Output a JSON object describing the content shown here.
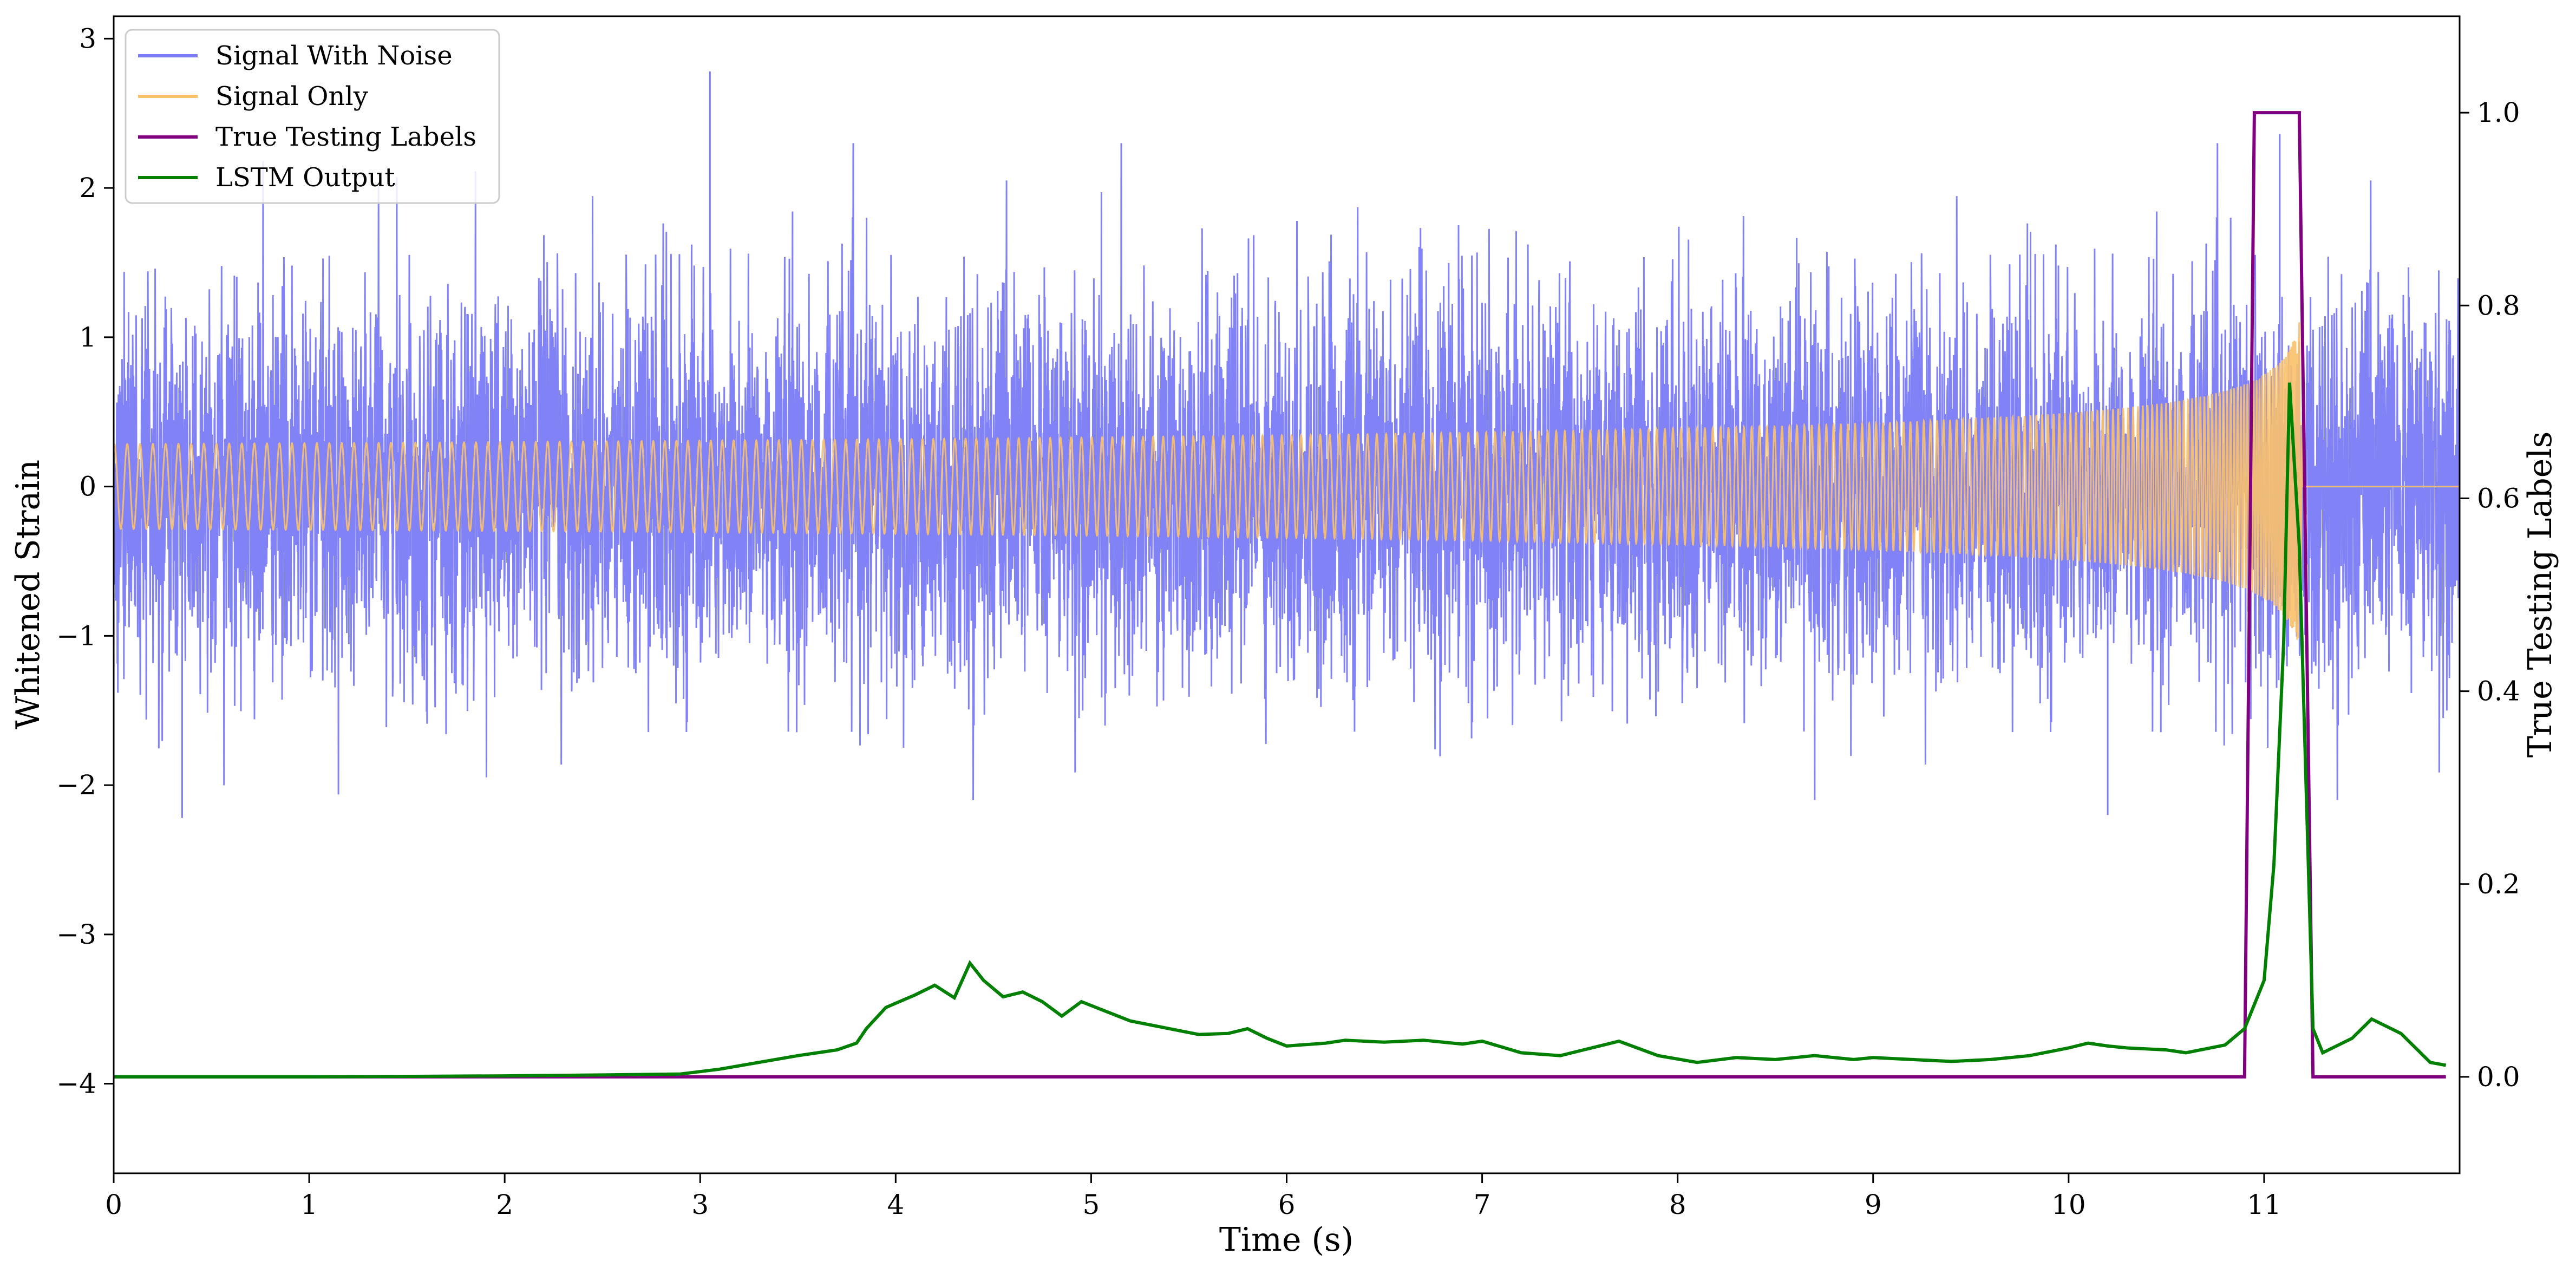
{
  "chart_data": {
    "type": "line",
    "xlabel": "Time (s)",
    "ylabel_left": "Whitened Strain",
    "ylabel_right": "True Testing Labels",
    "xlim": [
      0,
      12
    ],
    "ylim_left": [
      -4.6,
      3.15
    ],
    "ylim_right": [
      -0.1,
      1.1
    ],
    "x_ticks": [
      0,
      1,
      2,
      3,
      4,
      5,
      6,
      7,
      8,
      9,
      10,
      11
    ],
    "x_tick_labels": [
      "0",
      "1",
      "2",
      "3",
      "4",
      "5",
      "6",
      "7",
      "8",
      "9",
      "10",
      "11"
    ],
    "y_left_ticks": [
      -4,
      -3,
      -2,
      -1,
      0,
      1,
      2,
      3
    ],
    "y_left_tick_labels": [
      "−4",
      "−3",
      "−2",
      "−1",
      "0",
      "1",
      "2",
      "3"
    ],
    "y_right_ticks": [
      0.0,
      0.2,
      0.4,
      0.6,
      0.8,
      1.0
    ],
    "y_right_tick_labels": [
      "0.0",
      "0.2",
      "0.4",
      "0.6",
      "0.8",
      "1.0"
    ],
    "grid": false,
    "legend_position": "upper-left",
    "series": [
      {
        "name": "Signal With Noise",
        "axis": "left",
        "color": "#7b7bf7",
        "description_range": [
          -2.25,
          2.8
        ],
        "notable_peaks": [
          {
            "x": 3.05,
            "y": 2.78
          },
          {
            "x": 11.08,
            "y": 2.36
          },
          {
            "x": 0.35,
            "y": -2.22
          },
          {
            "x": 10.2,
            "y": -2.2
          }
        ]
      },
      {
        "name": "Signal Only",
        "axis": "left",
        "color": "#f9c16a",
        "chirp_start": 0,
        "chirp_peak_time": 11.18,
        "chirp_peak_amplitude": 1.1,
        "chirp_end": 11.2
      },
      {
        "name": "True Testing Labels",
        "axis": "right",
        "color": "#800080",
        "x": [
          0,
          10.9,
          10.95,
          11.18,
          11.25,
          11.93
        ],
        "y": [
          0,
          0,
          1,
          1,
          0,
          0
        ]
      },
      {
        "name": "LSTM Output",
        "axis": "right",
        "color": "#008000",
        "x": [
          0,
          1,
          2,
          2.5,
          2.9,
          3.1,
          3.3,
          3.5,
          3.7,
          3.8,
          3.85,
          3.95,
          4.1,
          4.2,
          4.3,
          4.38,
          4.45,
          4.55,
          4.65,
          4.75,
          4.85,
          4.95,
          5.05,
          5.2,
          5.4,
          5.55,
          5.7,
          5.8,
          5.9,
          6.0,
          6.2,
          6.3,
          6.5,
          6.7,
          6.9,
          7.0,
          7.2,
          7.4,
          7.6,
          7.7,
          7.9,
          8.1,
          8.3,
          8.5,
          8.7,
          8.9,
          9.0,
          9.2,
          9.4,
          9.6,
          9.8,
          10.0,
          10.1,
          10.2,
          10.3,
          10.5,
          10.6,
          10.8,
          10.9,
          11.0,
          11.05,
          11.1,
          11.13,
          11.18,
          11.25,
          11.3,
          11.45,
          11.55,
          11.7,
          11.85,
          11.93
        ],
        "y": [
          0,
          0,
          0.001,
          0.002,
          0.003,
          0.008,
          0.015,
          0.022,
          0.028,
          0.035,
          0.05,
          0.072,
          0.085,
          0.095,
          0.082,
          0.118,
          0.1,
          0.083,
          0.088,
          0.078,
          0.063,
          0.078,
          0.07,
          0.058,
          0.05,
          0.044,
          0.045,
          0.05,
          0.04,
          0.032,
          0.035,
          0.038,
          0.036,
          0.038,
          0.034,
          0.037,
          0.025,
          0.022,
          0.032,
          0.037,
          0.022,
          0.015,
          0.02,
          0.018,
          0.022,
          0.018,
          0.02,
          0.018,
          0.016,
          0.018,
          0.022,
          0.03,
          0.035,
          0.032,
          0.03,
          0.028,
          0.025,
          0.033,
          0.05,
          0.1,
          0.22,
          0.45,
          0.72,
          0.55,
          0.05,
          0.025,
          0.04,
          0.06,
          0.045,
          0.015,
          0.012
        ]
      }
    ]
  }
}
